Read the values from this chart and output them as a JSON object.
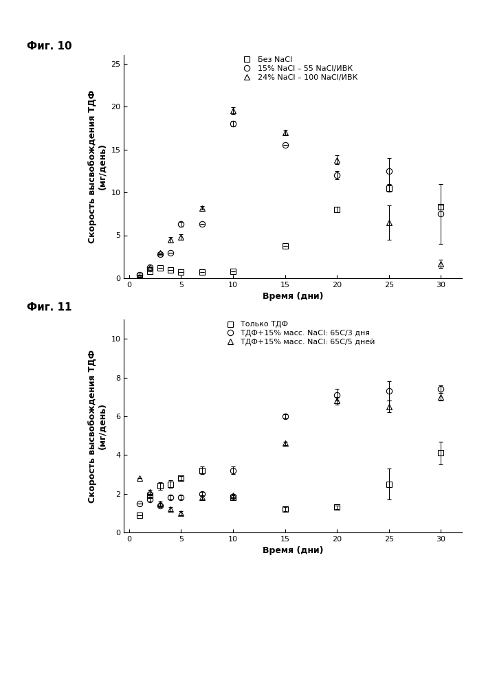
{
  "fig10": {
    "title": "Фиг. 10",
    "xlabel": "Время (дни)",
    "ylabel": "Скорость высвобождения ТДФ\n(мг/день)",
    "ylim": [
      0,
      26
    ],
    "xlim": [
      -0.5,
      32
    ],
    "xticks": [
      0,
      5,
      10,
      15,
      20,
      25,
      30
    ],
    "yticks": [
      0,
      5,
      10,
      15,
      20,
      25
    ],
    "series": [
      {
        "label": "Без NaCl",
        "marker": "s",
        "x": [
          1,
          2,
          3,
          4,
          5,
          7,
          10,
          15,
          20,
          25,
          30
        ],
        "y": [
          0.3,
          0.8,
          1.2,
          1.0,
          0.7,
          0.7,
          0.8,
          3.8,
          8.0,
          10.5,
          8.3
        ],
        "yerr": [
          0.0,
          0.0,
          0.0,
          0.0,
          0.0,
          0.0,
          0.0,
          0.0,
          0.3,
          0.4,
          0.3
        ]
      },
      {
        "label": "15% NaCl – 55 NaCl/ИВК",
        "marker": "o",
        "x": [
          1,
          2,
          3,
          4,
          5,
          7,
          10,
          15,
          20,
          25,
          30
        ],
        "y": [
          0.4,
          1.3,
          2.8,
          3.0,
          6.3,
          6.3,
          18.0,
          15.5,
          12.0,
          12.5,
          7.5
        ],
        "yerr": [
          0.0,
          0.0,
          0.0,
          0.0,
          0.3,
          0.0,
          0.3,
          0.0,
          0.5,
          1.5,
          3.5
        ]
      },
      {
        "label": "24% NaCl – 100 NaCl/ИВК",
        "marker": "^",
        "x": [
          1,
          2,
          3,
          4,
          5,
          7,
          10,
          15,
          20,
          25,
          30
        ],
        "y": [
          0.2,
          1.3,
          3.0,
          4.5,
          4.8,
          8.2,
          19.5,
          17.0,
          13.8,
          6.5,
          1.7
        ],
        "yerr": [
          0.0,
          0.0,
          0.0,
          0.3,
          0.3,
          0.2,
          0.4,
          0.3,
          0.5,
          2.0,
          0.5
        ]
      }
    ]
  },
  "fig11": {
    "title": "Фиг. 11",
    "xlabel": "Время (дни)",
    "ylabel": "Скорость высвобождения ТДФ\n(мг/день)",
    "ylim": [
      0,
      11
    ],
    "xlim": [
      -0.5,
      32
    ],
    "xticks": [
      0,
      5,
      10,
      15,
      20,
      25,
      30
    ],
    "yticks": [
      0,
      2,
      4,
      6,
      8,
      10
    ],
    "series": [
      {
        "label": "Только ТДФ",
        "marker": "s",
        "x": [
          1,
          2,
          3,
          4,
          5,
          7,
          10,
          15,
          20,
          25,
          30
        ],
        "y": [
          0.9,
          1.9,
          2.4,
          2.5,
          2.8,
          3.2,
          1.8,
          1.2,
          1.3,
          2.5,
          4.1
        ],
        "yerr": [
          0.0,
          0.0,
          0.2,
          0.2,
          0.1,
          0.2,
          0.1,
          0.1,
          0.1,
          0.8,
          0.6
        ]
      },
      {
        "label": "ТДФ+15% масс. NaCl: 65С/3 дня",
        "marker": "o",
        "x": [
          1,
          2,
          3,
          4,
          5,
          7,
          10,
          15,
          20,
          25,
          30
        ],
        "y": [
          1.5,
          1.7,
          1.4,
          1.8,
          1.8,
          2.0,
          3.2,
          6.0,
          7.1,
          7.3,
          7.4
        ],
        "yerr": [
          0.0,
          0.1,
          0.1,
          0.1,
          0.1,
          0.1,
          0.2,
          0.1,
          0.3,
          0.5,
          0.2
        ]
      },
      {
        "label": "ТДФ+15% масс. NaCl: 65С/5 дней",
        "marker": "^",
        "x": [
          1,
          2,
          3,
          4,
          5,
          7,
          10,
          15,
          20,
          25,
          30
        ],
        "y": [
          2.8,
          2.1,
          1.5,
          1.2,
          1.0,
          1.8,
          1.9,
          4.6,
          6.8,
          6.5,
          7.0
        ],
        "yerr": [
          0.0,
          0.1,
          0.1,
          0.1,
          0.1,
          0.1,
          0.1,
          0.1,
          0.2,
          0.3,
          0.2
        ]
      }
    ]
  },
  "bg_color": "#ffffff",
  "fig_label_fontsize": 11,
  "axis_label_fontsize": 9,
  "tick_fontsize": 8,
  "legend_fontsize": 8,
  "marker_size": 6,
  "capsize": 2,
  "elinewidth": 0.7,
  "markeredgewidth": 0.8
}
